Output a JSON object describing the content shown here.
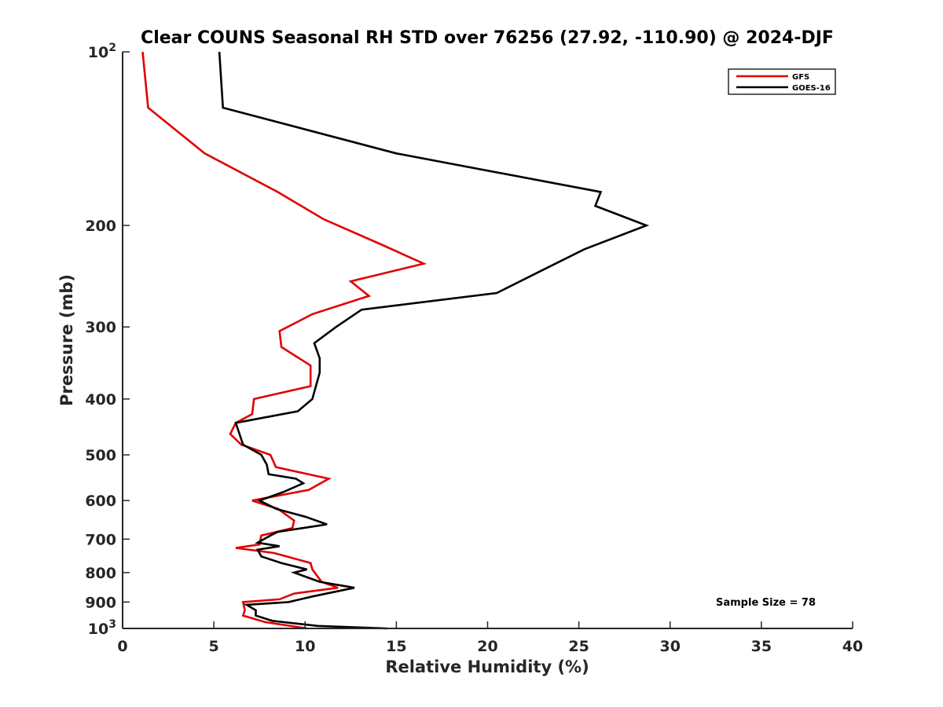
{
  "chart_data": {
    "type": "line",
    "title": "Clear COUNS Seasonal RH STD over 76256 (27.92, -110.90) @ 2024-DJF",
    "xlabel": "Relative Humidity (%)",
    "ylabel": "Pressure (mb)",
    "xlim": [
      0,
      40
    ],
    "ylim": [
      100,
      1000
    ],
    "yscale": "log",
    "yreversed": true,
    "xticks": [
      0,
      5,
      10,
      15,
      20,
      25,
      30,
      35,
      40
    ],
    "xtick_labels": [
      "0",
      "5",
      "10",
      "15",
      "20",
      "25",
      "30",
      "35",
      "40"
    ],
    "yticks": [
      100,
      200,
      300,
      400,
      500,
      600,
      700,
      800,
      900,
      1000
    ],
    "ytick_labels": [
      {
        "base": "10",
        "sup": "2"
      },
      {
        "base": "200"
      },
      {
        "base": "300"
      },
      {
        "base": "400"
      },
      {
        "base": "500"
      },
      {
        "base": "600"
      },
      {
        "base": "700"
      },
      {
        "base": "800"
      },
      {
        "base": "900"
      },
      {
        "base": "10",
        "sup": "3"
      }
    ],
    "legend_position": "top-right",
    "annotation": "Sample Size = 78",
    "series": [
      {
        "name": "GFS",
        "color": "#e00000",
        "points": [
          [
            1.1,
            100
          ],
          [
            1.4,
            125
          ],
          [
            4.5,
            150
          ],
          [
            8.5,
            175
          ],
          [
            11.0,
            195
          ],
          [
            14.2,
            216
          ],
          [
            16.5,
            233
          ],
          [
            12.5,
            250
          ],
          [
            13.5,
            265
          ],
          [
            10.4,
            285
          ],
          [
            8.6,
            305
          ],
          [
            8.7,
            325
          ],
          [
            10.3,
            350
          ],
          [
            10.3,
            380
          ],
          [
            7.2,
            400
          ],
          [
            7.1,
            425
          ],
          [
            6.2,
            440
          ],
          [
            5.9,
            460
          ],
          [
            6.5,
            480
          ],
          [
            8.1,
            500
          ],
          [
            8.4,
            525
          ],
          [
            11.3,
            550
          ],
          [
            10.2,
            575
          ],
          [
            7.1,
            600
          ],
          [
            8.5,
            620
          ],
          [
            9.4,
            650
          ],
          [
            9.3,
            670
          ],
          [
            7.6,
            690
          ],
          [
            7.5,
            715
          ],
          [
            6.2,
            725
          ],
          [
            8.3,
            740
          ],
          [
            10.3,
            770
          ],
          [
            10.4,
            790
          ],
          [
            10.9,
            830
          ],
          [
            11.8,
            850
          ],
          [
            9.4,
            870
          ],
          [
            8.6,
            890
          ],
          [
            6.6,
            900
          ],
          [
            6.7,
            930
          ],
          [
            6.6,
            950
          ],
          [
            7.8,
            975
          ],
          [
            10.1,
            1000
          ]
        ]
      },
      {
        "name": "GOES-16",
        "color": "#000000",
        "points": [
          [
            5.3,
            100
          ],
          [
            5.5,
            125
          ],
          [
            15.0,
            150
          ],
          [
            26.2,
            175
          ],
          [
            25.9,
            185
          ],
          [
            28.7,
            200
          ],
          [
            25.3,
            220
          ],
          [
            22.9,
            240
          ],
          [
            20.5,
            262
          ],
          [
            13.1,
            280
          ],
          [
            11.7,
            300
          ],
          [
            10.5,
            320
          ],
          [
            10.8,
            340
          ],
          [
            10.8,
            360
          ],
          [
            10.4,
            400
          ],
          [
            9.6,
            420
          ],
          [
            6.2,
            440
          ],
          [
            6.6,
            480
          ],
          [
            7.6,
            500
          ],
          [
            7.9,
            520
          ],
          [
            8.0,
            540
          ],
          [
            9.5,
            550
          ],
          [
            9.9,
            560
          ],
          [
            8.8,
            580
          ],
          [
            7.5,
            600
          ],
          [
            8.4,
            620
          ],
          [
            9.2,
            630
          ],
          [
            10.0,
            640
          ],
          [
            11.2,
            660
          ],
          [
            8.5,
            680
          ],
          [
            8.1,
            690
          ],
          [
            7.4,
            710
          ],
          [
            8.6,
            720
          ],
          [
            7.4,
            730
          ],
          [
            7.6,
            750
          ],
          [
            8.7,
            770
          ],
          [
            10.1,
            790
          ],
          [
            9.4,
            800
          ],
          [
            10.8,
            830
          ],
          [
            12.7,
            850
          ],
          [
            10.4,
            880
          ],
          [
            9.1,
            900
          ],
          [
            6.8,
            910
          ],
          [
            7.3,
            930
          ],
          [
            7.3,
            950
          ],
          [
            8.2,
            970
          ],
          [
            10.7,
            990
          ],
          [
            14.5,
            1000
          ]
        ]
      }
    ]
  }
}
